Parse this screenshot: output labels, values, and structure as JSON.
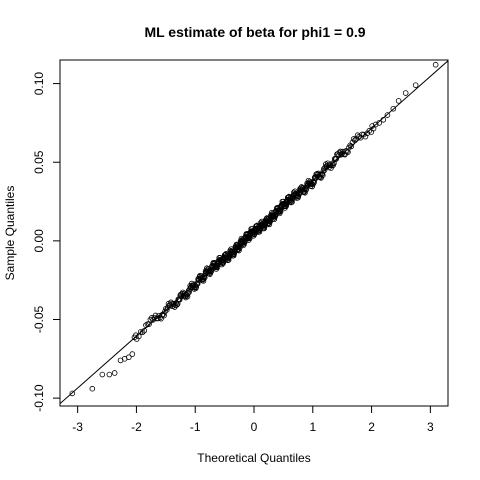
{
  "chart_data": {
    "type": "scatter",
    "subtype": "normal-qq-plot",
    "title": "ML estimate of beta for phi1 = 0.9",
    "xlabel": "Theoretical Quantiles",
    "ylabel": "Sample Quantiles",
    "xlim": [
      -3.3,
      3.3
    ],
    "ylim": [
      -0.105,
      0.115
    ],
    "x_ticks": [
      -3,
      -2,
      -1,
      0,
      1,
      2,
      3
    ],
    "x_tick_labels": [
      "-3",
      "-2",
      "-1",
      "0",
      "1",
      "2",
      "3"
    ],
    "y_ticks": [
      -0.1,
      -0.05,
      0.0,
      0.05,
      0.1
    ],
    "y_tick_labels": [
      "-0.10",
      "-0.05",
      "0.00",
      "0.05",
      "0.10"
    ],
    "grid": false,
    "reference_line": {
      "x": [
        -3.3,
        3.3
      ],
      "y": [
        -0.1035,
        0.1145
      ]
    },
    "series": [
      {
        "marker": "open-circle",
        "n_points": 500,
        "fit": {
          "intercept": 0.0055,
          "slope": 0.033
        },
        "x_tails_low": [
          -3.09,
          -2.75,
          -2.58,
          -2.46,
          -2.37,
          -2.27,
          -2.2,
          -2.13,
          -2.07,
          -2.01
        ],
        "y_tails_low": [
          -0.097,
          -0.094,
          -0.085,
          -0.085,
          -0.084,
          -0.076,
          -0.075,
          -0.074,
          -0.072,
          -0.06
        ],
        "x_tails_high": [
          2.01,
          2.07,
          2.13,
          2.2,
          2.27,
          2.37,
          2.46,
          2.58,
          2.75,
          3.09
        ],
        "y_tails_high": [
          0.073,
          0.074,
          0.075,
          0.077,
          0.08,
          0.084,
          0.089,
          0.094,
          0.099,
          0.112
        ]
      }
    ]
  }
}
